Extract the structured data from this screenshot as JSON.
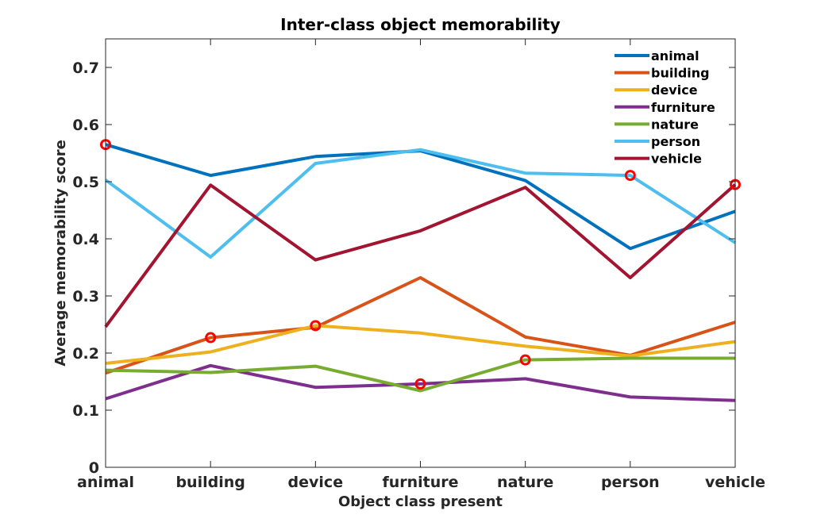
{
  "chart_data": {
    "type": "line",
    "title": "Inter-class object memorability",
    "xlabel": "Object class present",
    "ylabel": "Average memorability score",
    "categories": [
      "animal",
      "building",
      "device",
      "furniture",
      "nature",
      "person",
      "vehicle"
    ],
    "ylim": [
      0,
      0.75
    ],
    "yticks": [
      "0",
      "0.1",
      "0.2",
      "0.3",
      "0.4",
      "0.5",
      "0.6",
      "0.7"
    ],
    "yticks_values": [
      0,
      0.1,
      0.2,
      0.3,
      0.4,
      0.5,
      0.6,
      0.7
    ],
    "grid": false,
    "legend_position": "top-right",
    "series": [
      {
        "name": "animal",
        "color": "#0072BD",
        "values": [
          0.565,
          0.511,
          0.544,
          0.554,
          0.502,
          0.383,
          0.448
        ]
      },
      {
        "name": "building",
        "color": "#D95319",
        "values": [
          0.165,
          0.227,
          0.245,
          0.332,
          0.228,
          0.196,
          0.254
        ]
      },
      {
        "name": "device",
        "color": "#EDB120",
        "values": [
          0.182,
          0.202,
          0.248,
          0.235,
          0.212,
          0.195,
          0.22
        ]
      },
      {
        "name": "furniture",
        "color": "#7E2F8E",
        "values": [
          0.12,
          0.178,
          0.14,
          0.146,
          0.155,
          0.123,
          0.117
        ]
      },
      {
        "name": "nature",
        "color": "#77AC30",
        "values": [
          0.17,
          0.166,
          0.177,
          0.134,
          0.188,
          0.191,
          0.191
        ]
      },
      {
        "name": "person",
        "color": "#4DBEEE",
        "values": [
          0.503,
          0.368,
          0.532,
          0.556,
          0.515,
          0.511,
          0.393
        ]
      },
      {
        "name": "vehicle",
        "color": "#A2142F",
        "values": [
          0.246,
          0.494,
          0.363,
          0.414,
          0.49,
          0.332,
          0.495
        ]
      }
    ],
    "highlight_marker_color": "#FF0000"
  }
}
